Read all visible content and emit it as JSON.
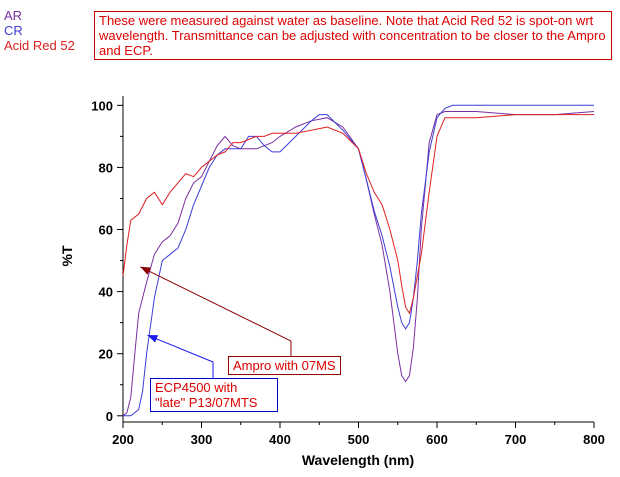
{
  "legend": {
    "items": [
      {
        "label": "AR",
        "color": "#7a2fa0"
      },
      {
        "label": "CR",
        "color": "#3d3dd6"
      },
      {
        "label": "Acid Red 52",
        "color": "#e02020"
      }
    ]
  },
  "note": "These were measured against water as baseline.  Note that Acid Red 52 is spot-on wrt wavelength.  Transmittance can be adjusted with concentration to be closer to the Ampro and ECP.",
  "annotations": {
    "ampro": {
      "text": "Ampro with 07MS",
      "arrow_color": "#8b0000",
      "target": [
        222,
        48
      ]
    },
    "ecp": {
      "line1": "ECP4500 with",
      "line2": "\"late\" P13/07MTS",
      "arrow_color": "#1a1aee",
      "target": [
        231,
        26
      ]
    }
  },
  "chart_data": {
    "type": "line",
    "xlabel": "Wavelength (nm)",
    "ylabel": "%T",
    "xlim": [
      200,
      800
    ],
    "ylim": [
      -2,
      103
    ],
    "xticks": [
      200,
      300,
      400,
      500,
      600,
      700,
      800
    ],
    "yticks": [
      0,
      20,
      40,
      60,
      80,
      100
    ],
    "grid": false,
    "series": [
      {
        "name": "AR",
        "color": "#7a2fa0",
        "x": [
          200,
          205,
          210,
          215,
          220,
          225,
          230,
          240,
          250,
          260,
          270,
          280,
          290,
          300,
          310,
          320,
          330,
          340,
          350,
          360,
          370,
          380,
          390,
          400,
          420,
          440,
          460,
          480,
          500,
          510,
          520,
          530,
          540,
          550,
          555,
          560,
          565,
          570,
          575,
          580,
          590,
          600,
          610,
          620,
          650,
          700,
          750,
          800
        ],
        "y": [
          0,
          1,
          6,
          20,
          33,
          38,
          43,
          52,
          56,
          58,
          62,
          70,
          75,
          77,
          82,
          87,
          90,
          87,
          86,
          86,
          86,
          87,
          88,
          90,
          93,
          95,
          96,
          93,
          86,
          76,
          65,
          55,
          40,
          20,
          13,
          11,
          13,
          22,
          38,
          60,
          88,
          97,
          98,
          98,
          98,
          97,
          97,
          98
        ]
      },
      {
        "name": "CR",
        "color": "#3d3dd6",
        "x": [
          200,
          210,
          220,
          225,
          230,
          240,
          250,
          260,
          270,
          280,
          290,
          300,
          310,
          320,
          330,
          340,
          350,
          360,
          370,
          380,
          390,
          400,
          420,
          440,
          450,
          460,
          480,
          500,
          510,
          520,
          530,
          540,
          550,
          555,
          560,
          565,
          570,
          575,
          580,
          590,
          600,
          610,
          620,
          650,
          700,
          750,
          800
        ],
        "y": [
          0,
          0,
          2,
          8,
          20,
          38,
          50,
          52,
          54,
          60,
          68,
          74,
          80,
          84,
          86,
          86,
          86,
          90,
          90,
          87,
          85,
          85,
          90,
          95,
          97,
          97,
          92,
          86,
          76,
          66,
          58,
          48,
          35,
          30,
          28,
          30,
          38,
          50,
          65,
          85,
          96,
          99,
          100,
          100,
          100,
          100,
          100
        ],
        "hidden": true
      },
      {
        "name": "Acid Red 52",
        "color": "#e02020",
        "x": [
          200,
          205,
          210,
          220,
          230,
          240,
          250,
          260,
          270,
          280,
          290,
          300,
          310,
          320,
          330,
          340,
          350,
          360,
          370,
          380,
          390,
          400,
          420,
          440,
          460,
          480,
          500,
          510,
          520,
          530,
          540,
          550,
          555,
          560,
          565,
          570,
          580,
          590,
          600,
          610,
          620,
          650,
          700,
          750,
          800
        ],
        "y": [
          45,
          55,
          63,
          65,
          70,
          72,
          68,
          72,
          75,
          78,
          77,
          80,
          82,
          84,
          85,
          88,
          88,
          89,
          90,
          90,
          91,
          91,
          91,
          92,
          93,
          91,
          86,
          78,
          72,
          68,
          60,
          50,
          42,
          35,
          33,
          38,
          52,
          72,
          90,
          96,
          96,
          96,
          97,
          97,
          97
        ]
      }
    ]
  }
}
